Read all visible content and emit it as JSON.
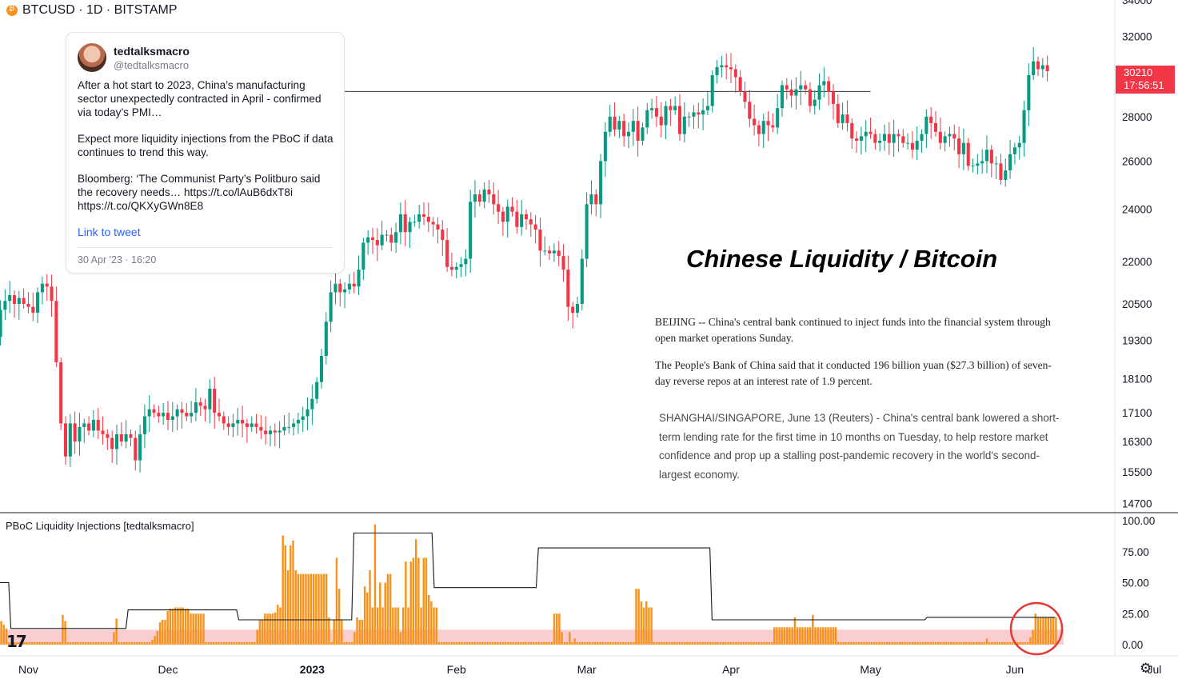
{
  "header": {
    "symbol_line": "BTCUSD · 1D · BITSTAMP",
    "symbol_icon": "bitcoin-icon"
  },
  "tweet": {
    "name": "tedtalksmacro",
    "handle": "@tedtalksmacro",
    "para1": "After a hot start to 2023, China’s manufacturing sector unexpectedly contracted in April - confirmed via today’s PMI…",
    "para2": "Expect more liquidity injections from the PBoC if data continues to trend this way.",
    "para3": "Bloomberg: ‘The Communist Party’s Politburo said the recovery needs… https://t.co/lAuB6dxT8i https://t.co/QKXyGWn8E8",
    "link_label": "Link to tweet",
    "date": "30 Apr '23 · 16:20"
  },
  "annotation_title": "Chinese Liquidity / Bitcoin",
  "news": {
    "p1": "BEIJING -- China's central bank continued to inject funds into the financial system through open market operations Sunday.",
    "p2": "The People's Bank of China said that it conducted 196 billion yuan ($27.3 billion) of seven-day reverse repos at an interest rate of 1.9 percent.",
    "p3": "SHANGHAI/SINGAPORE, June 13 (Reuters) - China's central bank lowered a short-term lending rate for the first time in 10 months on Tuesday, to help restore market confidence and prop up a stalling post-pandemic recovery in the world's second-largest economy."
  },
  "price_badge": {
    "price": "30210",
    "countdown": "17:56:51",
    "color": "#f23645"
  },
  "indicator": {
    "label": "PBoC Liquidity Injections [tedtalksmacro]"
  },
  "icons": {
    "logo": "tradingview-logo-icon",
    "settings": "gear-icon"
  },
  "chart_data": [
    {
      "type": "candlestick",
      "scale": "log",
      "start_date": "2022-10-24",
      "ylim": [
        14500,
        34000
      ],
      "y_ticks": [
        "34000",
        "32000",
        "28000",
        "26000",
        "24000",
        "22000",
        "20500",
        "19300",
        "18100",
        "17100",
        "16300",
        "15500",
        "14700"
      ],
      "x_ticks": [
        {
          "label": "Nov",
          "date": "2022-11-01"
        },
        {
          "label": "Dec",
          "date": "2022-12-01"
        },
        {
          "label": "2023",
          "date": "2023-01-01",
          "bold": true
        },
        {
          "label": "Feb",
          "date": "2023-02-01"
        },
        {
          "label": "Mar",
          "date": "2023-03-01"
        },
        {
          "label": "Apr",
          "date": "2023-04-01"
        },
        {
          "label": "May",
          "date": "2023-05-01"
        },
        {
          "label": "Jun",
          "date": "2023-06-01"
        },
        {
          "label": "Jul",
          "date": "2023-07-01"
        }
      ],
      "horizontal_line": 29200,
      "colors": {
        "up": "#089981",
        "down": "#f23645"
      },
      "close": [
        19600,
        19400,
        20300,
        20600,
        20800,
        20500,
        20700,
        20500,
        20400,
        20200,
        20900,
        21200,
        21100,
        20600,
        18600,
        16800,
        15900,
        16800,
        16300,
        16700,
        16800,
        16600,
        16900,
        16600,
        16500,
        16400,
        16100,
        16500,
        16300,
        16500,
        16400,
        15800,
        16500,
        17000,
        17200,
        17100,
        17000,
        17100,
        16900,
        17000,
        17200,
        17100,
        17000,
        17100,
        17400,
        17300,
        17200,
        17800,
        17100,
        17000,
        16800,
        16700,
        16800,
        16900,
        16800,
        16700,
        16800,
        16700,
        16600,
        16500,
        16600,
        16550,
        16600,
        16700,
        16700,
        16800,
        16900,
        17000,
        17200,
        17500,
        18000,
        18800,
        19900,
        20900,
        21200,
        20900,
        21000,
        21200,
        21100,
        21700,
        22700,
        22900,
        22800,
        22600,
        23000,
        23000,
        22700,
        23100,
        23800,
        23100,
        23500,
        23500,
        23800,
        23700,
        23500,
        23400,
        23200,
        22800,
        21800,
        21700,
        21800,
        21900,
        22100,
        24300,
        24600,
        24300,
        24800,
        24600,
        24200,
        23900,
        23500,
        24100,
        23900,
        23300,
        23800,
        23600,
        23400,
        23200,
        22400,
        22400,
        22300,
        22400,
        22200,
        21700,
        20400,
        20200,
        20500,
        22100,
        24200,
        24600,
        24200,
        26000,
        27300,
        28000,
        27400,
        27800,
        27100,
        27300,
        27800,
        26900,
        27500,
        28300,
        28400,
        28000,
        27600,
        28500,
        28300,
        28500,
        27200,
        28000,
        28000,
        28200,
        28100,
        28300,
        28500,
        30000,
        30400,
        30500,
        30400,
        30300,
        29900,
        29200,
        28700,
        27900,
        27600,
        27200,
        27800,
        27600,
        27500,
        28400,
        29500,
        29300,
        29000,
        29300,
        29500,
        29300,
        28500,
        28800,
        29500,
        29700,
        29200,
        28600,
        27700,
        28100,
        27700,
        27000,
        26900,
        27100,
        27300,
        27200,
        26800,
        26900,
        27200,
        26800,
        27200,
        27100,
        26800,
        26800,
        26500,
        26900,
        27200,
        28000,
        27700,
        27300,
        26800,
        27100,
        27200,
        27000,
        26300,
        26800,
        25800,
        25800,
        25900,
        26000,
        26500,
        25900,
        25900,
        25200,
        25600,
        26300,
        26600,
        26800,
        28300,
        30000,
        30700,
        30300,
        30500,
        30200
      ],
      "note": "close prices per day, open = previous close"
    },
    {
      "type": "bar+line",
      "ylim": [
        0,
        100
      ],
      "y_ticks": [
        "100.00",
        "75.00",
        "50.00",
        "25.00",
        "0.00"
      ],
      "bar_color": "#f7931a",
      "line_color": "#131722",
      "band": {
        "from": 0,
        "to": 12,
        "color": "#f9c5c9"
      },
      "bars": [
        19,
        16,
        13,
        2,
        2,
        2,
        2,
        2,
        2,
        2,
        2,
        2,
        2,
        2,
        2,
        2,
        2,
        2,
        2,
        2,
        2,
        2,
        2,
        2,
        24,
        19,
        2,
        2,
        2,
        2,
        2,
        2,
        2,
        2,
        2,
        2,
        2,
        2,
        2,
        2,
        2,
        2,
        2,
        2,
        10,
        21,
        2,
        2,
        2,
        2,
        2,
        2,
        2,
        2,
        2,
        2,
        2,
        2,
        2,
        4,
        7,
        11,
        18,
        20,
        20,
        27,
        29,
        29,
        30,
        30,
        30,
        30,
        29,
        29,
        25,
        25,
        25,
        25,
        25,
        25,
        2,
        2,
        2,
        2,
        2,
        2,
        2,
        2,
        2,
        2,
        2,
        2,
        2,
        2,
        2,
        2,
        2,
        2,
        2,
        2,
        12,
        20,
        20,
        25,
        25,
        25,
        25,
        26,
        32,
        30,
        88,
        80,
        60,
        80,
        84,
        60,
        57,
        57,
        57,
        57,
        57,
        57,
        57,
        57,
        57,
        57,
        57,
        57,
        22,
        2,
        20,
        70,
        45,
        20,
        2,
        2,
        2,
        2,
        10,
        22,
        20,
        20,
        47,
        42,
        60,
        30,
        97,
        30,
        50,
        30,
        50,
        57,
        57,
        30,
        30,
        30,
        10,
        30,
        67,
        30,
        67,
        70,
        85,
        70,
        30,
        70,
        70,
        40,
        35,
        30,
        30,
        2,
        2,
        2,
        2,
        2,
        2,
        2,
        2,
        2,
        2,
        2,
        2,
        2,
        2,
        2,
        2,
        2,
        2,
        2,
        2,
        2,
        2,
        2,
        2,
        2,
        2,
        2,
        2,
        2,
        2,
        2,
        2,
        2,
        2,
        2,
        2,
        2,
        2,
        2,
        2,
        2,
        2,
        2,
        2,
        2,
        25,
        25,
        25,
        10,
        2,
        2,
        10,
        2,
        5,
        2,
        2,
        2,
        2,
        2,
        2,
        2,
        2,
        2,
        2,
        2,
        2,
        2,
        2,
        2,
        2,
        2,
        2,
        2,
        2,
        2,
        2,
        2,
        45,
        45,
        35,
        30,
        35,
        30,
        30,
        2,
        2,
        2,
        2,
        2,
        2,
        2,
        2,
        2,
        2,
        2,
        2,
        2,
        2,
        2,
        2,
        2,
        2,
        2,
        2,
        2,
        2,
        2,
        2,
        2,
        2,
        2,
        2,
        2,
        2,
        2,
        2,
        2,
        2,
        2,
        2,
        2,
        2,
        2,
        2,
        2,
        2,
        2,
        2,
        2,
        2,
        2,
        14,
        14,
        14,
        14,
        14,
        14,
        14,
        14,
        22,
        14,
        14,
        14,
        14,
        14,
        14,
        24,
        14,
        14,
        14,
        14,
        14,
        14,
        14,
        14,
        14,
        2,
        2,
        2,
        2,
        2,
        2,
        2,
        2,
        2,
        2,
        2,
        2,
        2,
        2,
        2,
        2,
        2,
        2,
        2,
        2,
        2,
        2,
        2,
        2,
        2,
        2,
        2,
        2,
        2,
        2,
        2,
        2,
        2,
        2,
        2,
        2,
        2,
        2,
        2,
        2,
        2,
        2,
        2,
        2,
        2,
        2,
        2,
        2,
        2,
        2,
        2,
        2,
        2,
        2,
        2,
        2,
        2,
        2,
        5,
        2,
        2,
        2,
        2,
        2,
        2,
        2,
        2,
        2,
        2,
        2,
        2,
        2,
        2,
        2,
        2,
        6,
        12,
        25,
        22,
        22,
        22,
        22,
        22,
        22,
        22,
        22
      ],
      "line": [
        50,
        50,
        50,
        50,
        50,
        13,
        13,
        13,
        13,
        13,
        13,
        13,
        13,
        13,
        13,
        13,
        13,
        13,
        13,
        13,
        13,
        13,
        13,
        13,
        13,
        13,
        13,
        13,
        13,
        13,
        13,
        13,
        13,
        13,
        13,
        13,
        13,
        13,
        13,
        13,
        13,
        13,
        13,
        13,
        13,
        13,
        13,
        13,
        13,
        13,
        13,
        13,
        13,
        13,
        13,
        13,
        13,
        13,
        13,
        28,
        28,
        28,
        28,
        28,
        28,
        28,
        28,
        28,
        28,
        28,
        28,
        28,
        28,
        28,
        28,
        28,
        28,
        28,
        28,
        28,
        28,
        28,
        28,
        28,
        28,
        28,
        28,
        28,
        28,
        28,
        28,
        28,
        28,
        28,
        28,
        28,
        28,
        28,
        28,
        28,
        28,
        28,
        28,
        28,
        28,
        28,
        28,
        28,
        28,
        28,
        20,
        20,
        20,
        20,
        20,
        20,
        20,
        20,
        20,
        20,
        20,
        20,
        20,
        20,
        20,
        20,
        20,
        20,
        20,
        20,
        20,
        20,
        20,
        20,
        20,
        20,
        20,
        20,
        20,
        20,
        20,
        20,
        20,
        20,
        20,
        20,
        20,
        20,
        20,
        20,
        20,
        20,
        20,
        20,
        20,
        20,
        20,
        20,
        20,
        20,
        20,
        20,
        20,
        90,
        90,
        90,
        90,
        90,
        90,
        90,
        90,
        90,
        90,
        90,
        90,
        90,
        90,
        90,
        90,
        90,
        90,
        90,
        90,
        90,
        90,
        90,
        90,
        90,
        90,
        90,
        90,
        90,
        90,
        90,
        90,
        90,
        90,
        90,
        90,
        90,
        46,
        46,
        46,
        46,
        46,
        46,
        46,
        46,
        46,
        46,
        46,
        46,
        46,
        46,
        46,
        46,
        46,
        46,
        46,
        46,
        46,
        46,
        46,
        46,
        46,
        46,
        46,
        46,
        46,
        46,
        46,
        46,
        46,
        46,
        46,
        46,
        46,
        46,
        46,
        46,
        46,
        46,
        46,
        46,
        46,
        46,
        46,
        46,
        78,
        78,
        78,
        78,
        78,
        78,
        78,
        78,
        78,
        78,
        78,
        78,
        78,
        78,
        78,
        78,
        78,
        78,
        78,
        78,
        78,
        78,
        78,
        78,
        78,
        78,
        78,
        78,
        78,
        78,
        78,
        78,
        78,
        78,
        78,
        78,
        78,
        78,
        78,
        78,
        78,
        78,
        78,
        78,
        78,
        78,
        78,
        78,
        78,
        78,
        78,
        78,
        78,
        78,
        78,
        78,
        78,
        78,
        78,
        78,
        78,
        78,
        78,
        78,
        78,
        78,
        78,
        78,
        78,
        78,
        78,
        78,
        78,
        78,
        78,
        78,
        78,
        78,
        78,
        78,
        20,
        20,
        20,
        20,
        20,
        20,
        20,
        20,
        20,
        20,
        20,
        20,
        20,
        20,
        20,
        20,
        20,
        20,
        20,
        20,
        20,
        20,
        20,
        20,
        20,
        20,
        20,
        20,
        20,
        20,
        20,
        20,
        20,
        20,
        20,
        20,
        20,
        20,
        20,
        20,
        20,
        20,
        20,
        20,
        20,
        20,
        20,
        20,
        20,
        20,
        20,
        20,
        20,
        20,
        20,
        20,
        20,
        20,
        20,
        20,
        20,
        20,
        20,
        20,
        20,
        20,
        20,
        20,
        20,
        20,
        20,
        20,
        20,
        20,
        20,
        20,
        20,
        20,
        20,
        20,
        20,
        20,
        20,
        20,
        20,
        20,
        20,
        20,
        20,
        20,
        20,
        20,
        20,
        20,
        20,
        20,
        20,
        20,
        20,
        22,
        22,
        22,
        22,
        22,
        22,
        22,
        22,
        22,
        22,
        22,
        22,
        22,
        22,
        22,
        22,
        22,
        22,
        22,
        22,
        22,
        22,
        22,
        22,
        22,
        22,
        22,
        22,
        22,
        22,
        22,
        22,
        22,
        22,
        22,
        22,
        22,
        22,
        22,
        22,
        22,
        22,
        22,
        22,
        22,
        22,
        22,
        22,
        22,
        22,
        22,
        22,
        22,
        22,
        22,
        22,
        22,
        22,
        22,
        22
      ]
    }
  ]
}
